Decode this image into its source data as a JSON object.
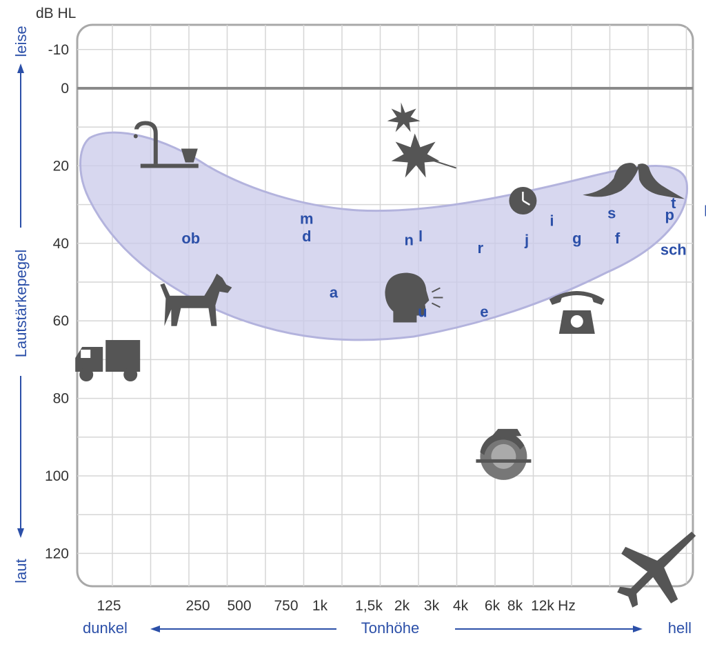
{
  "chart_data": {
    "type": "scatter",
    "title": "",
    "unit_label": "dB HL",
    "xlabel": "Tonhöhe",
    "x_low_label": "dunkel",
    "x_high_label": "hell",
    "ylabel": "Lautstärkepegel",
    "y_top_label": "leise",
    "y_bottom_label": "laut",
    "x_ticks": [
      "125",
      "250",
      "500",
      "750",
      "1k",
      "1,5k",
      "2k",
      "3k",
      "4k",
      "6k",
      "8k",
      "12k",
      "Hz"
    ],
    "y_ticks": [
      "-10",
      "0",
      "20",
      "40",
      "60",
      "80",
      "100",
      "120"
    ],
    "ylim": [
      -10,
      130
    ],
    "grid": true,
    "accent_color": "#2b4fa8",
    "speech_banana_color": "#c9c9ea",
    "icon_color": "#555555",
    "phonemes": [
      {
        "text": "ob",
        "x": 2.8,
        "y": 40
      },
      {
        "text": "m",
        "x": 5.8,
        "y": 35
      },
      {
        "text": "d",
        "x": 5.8,
        "y": 39.5
      },
      {
        "text": "n",
        "x": 8.45,
        "y": 40.5
      },
      {
        "text": "l",
        "x": 8.75,
        "y": 39.5
      },
      {
        "text": "a",
        "x": 6.5,
        "y": 54
      },
      {
        "text": "u",
        "x": 8.8,
        "y": 59
      },
      {
        "text": "e",
        "x": 10.4,
        "y": 59
      },
      {
        "text": "r",
        "x": 10.3,
        "y": 42.5
      },
      {
        "text": "j",
        "x": 11.5,
        "y": 40.5
      },
      {
        "text": "i",
        "x": 12.15,
        "y": 35.5
      },
      {
        "text": "g",
        "x": 12.8,
        "y": 40
      },
      {
        "text": "s",
        "x": 13.7,
        "y": 33.5
      },
      {
        "text": "f",
        "x": 13.85,
        "y": 40
      },
      {
        "text": "t",
        "x": 15.3,
        "y": 31
      },
      {
        "text": "p",
        "x": 15.2,
        "y": 34
      },
      {
        "text": "k",
        "x": 16.2,
        "y": 33
      },
      {
        "text": "sch",
        "x": 15.3,
        "y": 43
      }
    ],
    "sounds": [
      {
        "icon": "dripping-faucet-icon",
        "x": 2.3,
        "y": 17
      },
      {
        "icon": "rustling-leaves-icon",
        "x": 8.6,
        "y": 17
      },
      {
        "icon": "ticking-clock-icon",
        "x": 11.4,
        "y": 29
      },
      {
        "icon": "birds-icon",
        "x": 14.2,
        "y": 25
      },
      {
        "icon": "dog-icon",
        "x": 2.9,
        "y": 56
      },
      {
        "icon": "speaking-head-icon",
        "x": 8.4,
        "y": 54
      },
      {
        "icon": "telephone-icon",
        "x": 12.8,
        "y": 58
      },
      {
        "icon": "truck-icon",
        "x": 0.7,
        "y": 71
      },
      {
        "icon": "circular-saw-icon",
        "x": 10.9,
        "y": 95
      },
      {
        "icon": "airplane-icon",
        "x": 14.7,
        "y": 124
      }
    ]
  }
}
